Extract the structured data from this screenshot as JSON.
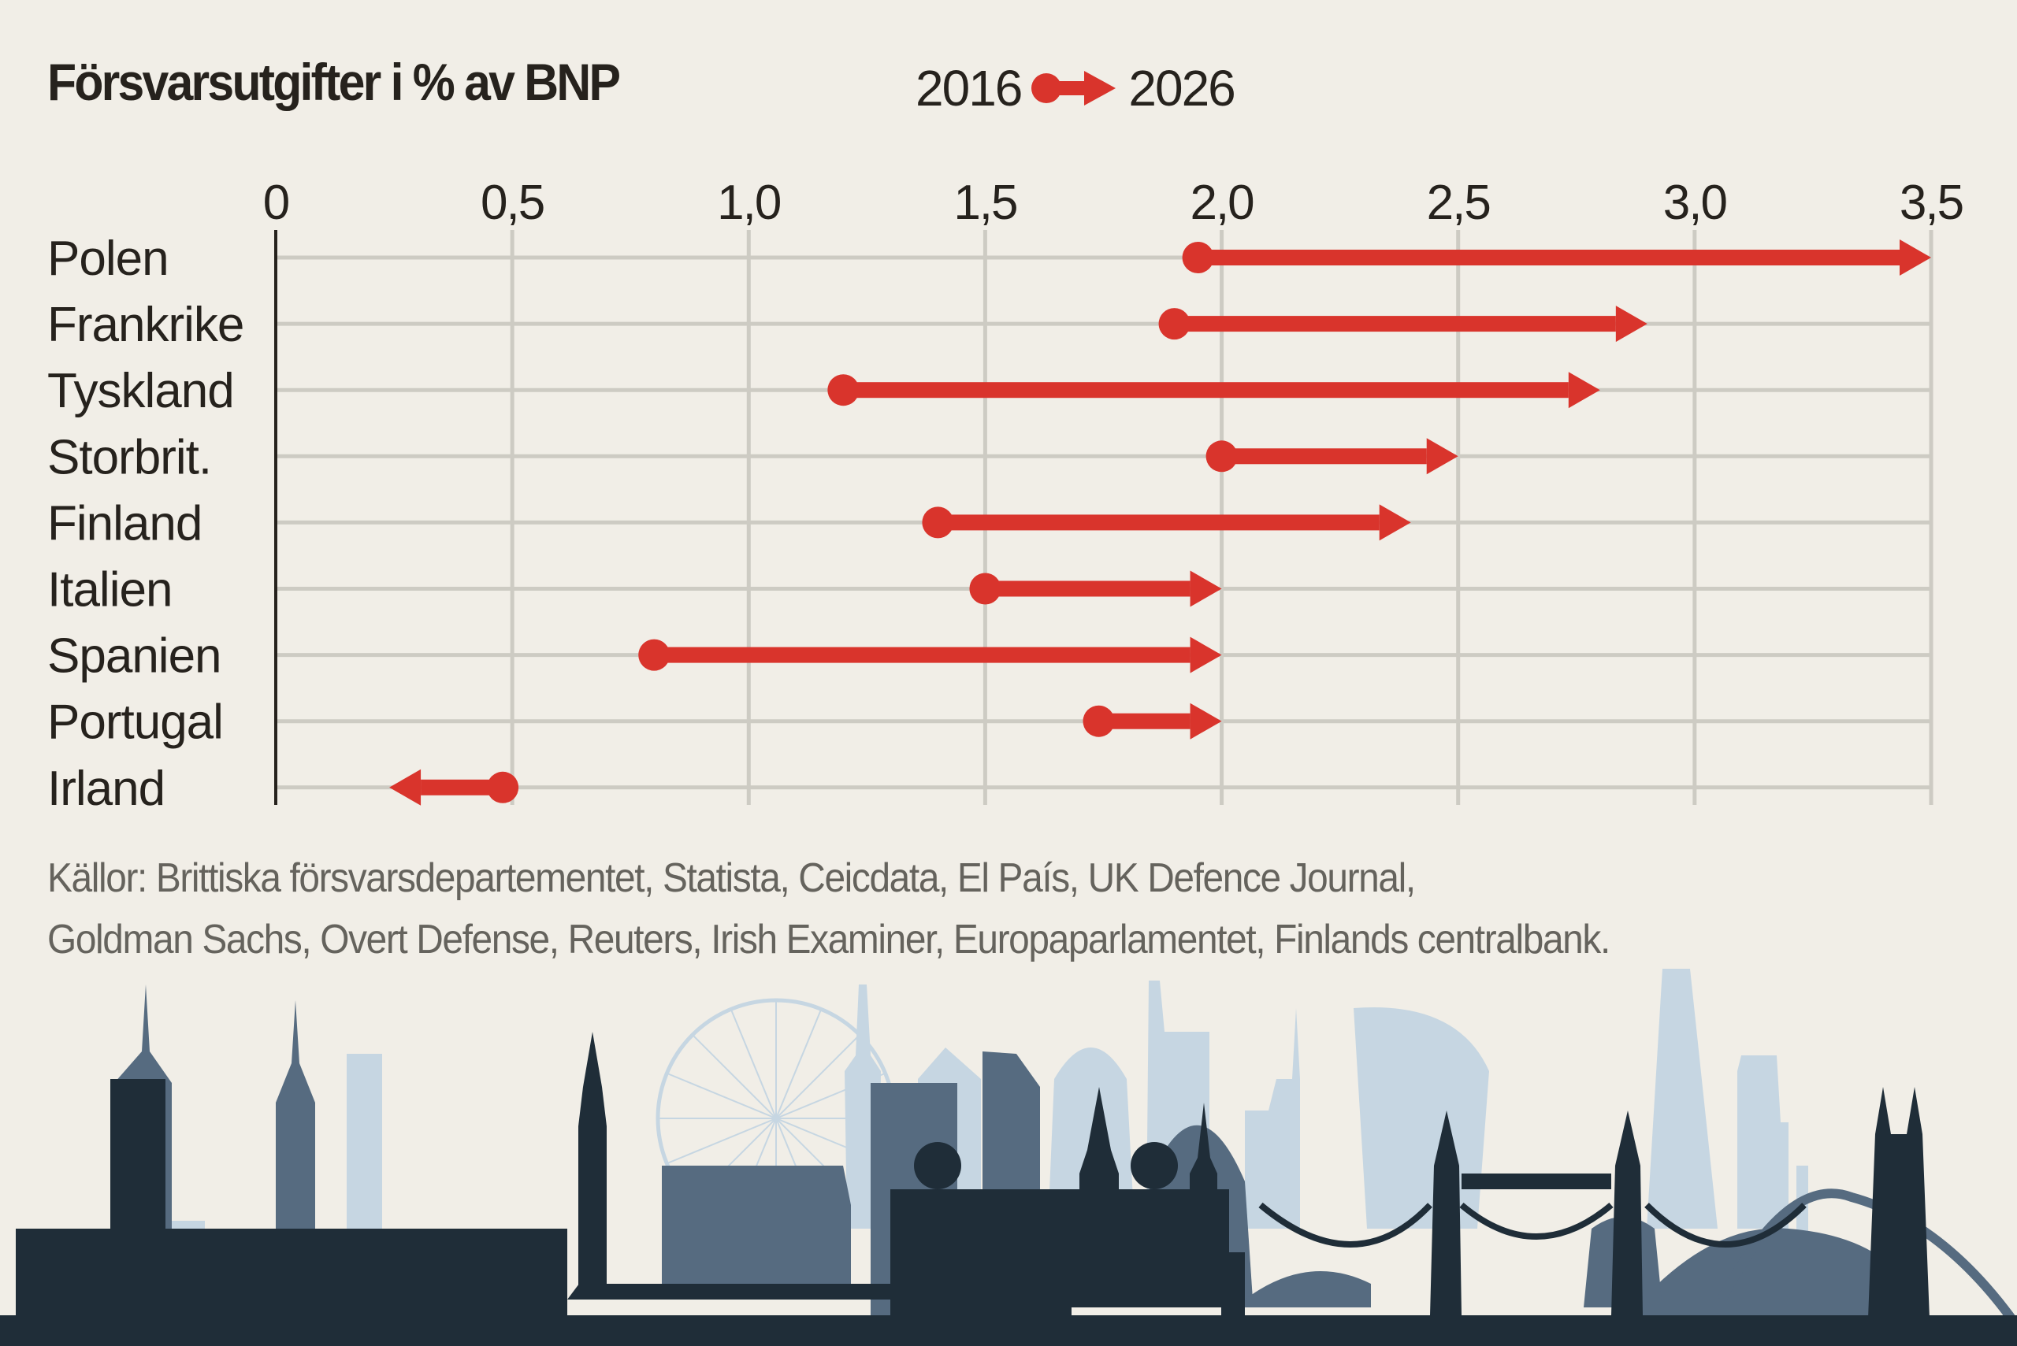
{
  "title": "Försvarsutgifter i % av BNP",
  "legend": {
    "from_label": "2016",
    "to_label": "2026",
    "arrow_color": "#d9342c"
  },
  "colors": {
    "background": "#f1eee7",
    "arrow": "#d9342c",
    "grid": "#cdcbc3",
    "axis": "#26221d",
    "text": "#26221d",
    "source_text": "#65635d",
    "skyline_dark": "#1f2d38",
    "skyline_mid": "#566b80",
    "skyline_light": "#c6d6e2"
  },
  "chart_data": {
    "type": "arrow-dumbbell",
    "title": "Försvarsutgifter i % av BNP",
    "xlabel": "",
    "ylabel": "",
    "xlim": [
      0,
      3.5
    ],
    "x_ticks": [
      0,
      0.5,
      1.0,
      1.5,
      2.0,
      2.5,
      3.0,
      3.5
    ],
    "x_tick_labels": [
      "0",
      "0,5",
      "1,0",
      "1,5",
      "2,0",
      "2,5",
      "3,0",
      "3,5"
    ],
    "grid": true,
    "legend_position": "top",
    "series": [
      {
        "name": "2016",
        "marker": "dot"
      },
      {
        "name": "2026",
        "marker": "arrowhead"
      }
    ],
    "categories": [
      "Polen",
      "Frankrike",
      "Tyskland",
      "Storbrit.",
      "Finland",
      "Italien",
      "Spanien",
      "Portugal",
      "Irland"
    ],
    "values_2016": [
      1.95,
      1.9,
      1.2,
      2.0,
      1.4,
      1.5,
      0.8,
      1.74,
      0.48
    ],
    "values_2026": [
      3.5,
      2.9,
      2.8,
      2.5,
      2.4,
      2.0,
      2.0,
      2.0,
      0.24
    ]
  },
  "sources": {
    "line1": "Källor: Brittiska försvarsdepartementet, Statista, Ceicdata, El País, UK Defence Journal,",
    "line2": "Goldman Sachs, Overt Defense, Reuters, Irish Examiner, Europaparlamentet, Finlands centralbank."
  },
  "illustration": "london-skyline"
}
